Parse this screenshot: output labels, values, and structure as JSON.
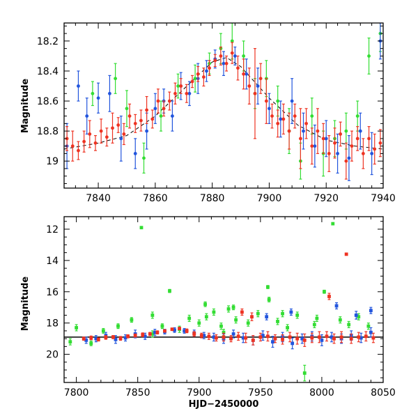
{
  "chart_data": [
    {
      "type": "scatter",
      "title": "",
      "xlabel": "",
      "ylabel": "Magnitude",
      "xlim": [
        7828,
        7940
      ],
      "ylim": [
        19.18,
        18.08
      ],
      "y_inverted": true,
      "grid": false,
      "xticks": [
        7840,
        7860,
        7880,
        7900,
        7920,
        7940
      ],
      "yticks": [
        18.2,
        18.4,
        18.6,
        18.8,
        19
      ],
      "ytick_labels": [
        "18.2",
        "18.4",
        "18.6",
        "18.8",
        "19"
      ],
      "error_bars": true,
      "model_curve": {
        "style": "dashed",
        "color": "#000000",
        "x": [
          7828,
          7840,
          7850,
          7860,
          7870,
          7880,
          7885,
          7890,
          7900,
          7910,
          7920,
          7930,
          7940
        ],
        "y": [
          18.92,
          18.88,
          18.83,
          18.7,
          18.52,
          18.34,
          18.31,
          18.37,
          18.58,
          18.76,
          18.86,
          18.9,
          18.92
        ]
      },
      "series": [
        {
          "color": "#ee3322",
          "note_points": "dense coverage, approximate sample",
          "x": [
            7829,
            7831,
            7833,
            7835,
            7837,
            7839,
            7841,
            7843,
            7845,
            7847,
            7849,
            7851,
            7853,
            7855,
            7857,
            7859,
            7861,
            7863,
            7865,
            7867,
            7869,
            7871,
            7873,
            7875,
            7877,
            7879,
            7881,
            7883,
            7885,
            7887,
            7889,
            7891,
            7893,
            7895,
            7897,
            7899,
            7901,
            7903,
            7905,
            7907,
            7909,
            7911,
            7913,
            7915,
            7917,
            7919,
            7921,
            7923,
            7925,
            7927,
            7929,
            7931,
            7933,
            7935,
            7937,
            7939
          ],
          "y": [
            18.85,
            18.9,
            18.93,
            18.87,
            18.82,
            18.88,
            18.8,
            18.84,
            18.78,
            18.76,
            18.82,
            18.7,
            18.75,
            18.73,
            18.66,
            18.72,
            18.6,
            18.65,
            18.6,
            18.55,
            18.5,
            18.55,
            18.47,
            18.42,
            18.44,
            18.38,
            18.33,
            18.3,
            18.35,
            18.28,
            18.38,
            18.42,
            18.5,
            18.55,
            18.45,
            18.6,
            18.7,
            18.75,
            18.72,
            18.8,
            18.7,
            18.85,
            18.75,
            18.9,
            18.8,
            18.85,
            18.95,
            18.88,
            18.82,
            19.0,
            18.9,
            18.85,
            18.95,
            18.85,
            18.92,
            18.88
          ],
          "err": [
            0.08,
            0.1,
            0.06,
            0.07,
            0.09,
            0.05,
            0.08,
            0.06,
            0.1,
            0.05,
            0.07,
            0.08,
            0.06,
            0.07,
            0.09,
            0.06,
            0.08,
            0.05,
            0.06,
            0.07,
            0.05,
            0.06,
            0.04,
            0.05,
            0.06,
            0.05,
            0.04,
            0.06,
            0.05,
            0.07,
            0.08,
            0.1,
            0.12,
            0.3,
            0.1,
            0.15,
            0.08,
            0.09,
            0.1,
            0.12,
            0.08,
            0.2,
            0.1,
            0.12,
            0.15,
            0.1,
            0.12,
            0.1,
            0.08,
            0.12,
            0.1,
            0.08,
            0.1,
            0.08,
            0.1,
            0.09
          ]
        },
        {
          "color": "#2255dd",
          "note_points": "approximate sample",
          "x": [
            7829,
            7833,
            7836,
            7840,
            7844,
            7848,
            7853,
            7857,
            7860,
            7863,
            7866,
            7869,
            7872,
            7875,
            7878,
            7881,
            7884,
            7888,
            7892,
            7896,
            7900,
            7904,
            7908,
            7912,
            7916,
            7920,
            7924,
            7928,
            7932,
            7936,
            7939
          ],
          "y": [
            18.9,
            18.5,
            18.7,
            18.58,
            18.55,
            18.85,
            18.95,
            18.8,
            18.65,
            18.6,
            18.7,
            18.5,
            18.55,
            18.45,
            18.4,
            18.32,
            18.35,
            18.3,
            18.42,
            18.5,
            18.65,
            18.72,
            18.6,
            18.8,
            18.9,
            18.85,
            18.95,
            18.98,
            18.8,
            18.95,
            18.2
          ],
          "err": [
            0.15,
            0.1,
            0.12,
            0.1,
            0.12,
            0.15,
            0.1,
            0.12,
            0.1,
            0.08,
            0.1,
            0.09,
            0.08,
            0.1,
            0.07,
            0.06,
            0.08,
            0.06,
            0.1,
            0.12,
            0.1,
            0.12,
            0.15,
            0.12,
            0.14,
            0.12,
            0.13,
            0.15,
            0.12,
            0.14,
            0.12
          ]
        },
        {
          "color": "#33dd33",
          "note_points": "approximate sample",
          "x": [
            7838,
            7846,
            7850,
            7856,
            7862,
            7868,
            7874,
            7879,
            7883,
            7887,
            7891,
            7895,
            7899,
            7903,
            7907,
            7911,
            7915,
            7919,
            7923,
            7927,
            7931,
            7935,
            7939
          ],
          "y": [
            18.55,
            18.45,
            18.65,
            18.98,
            18.7,
            18.5,
            18.45,
            18.35,
            18.25,
            18.2,
            18.3,
            18.55,
            18.45,
            18.6,
            18.8,
            19.0,
            18.7,
            18.95,
            18.85,
            18.8,
            18.7,
            18.3,
            18.15
          ],
          "err": [
            0.08,
            0.1,
            0.12,
            0.1,
            0.1,
            0.08,
            0.09,
            0.07,
            0.1,
            0.12,
            0.1,
            0.1,
            0.12,
            0.1,
            0.15,
            0.12,
            0.12,
            0.15,
            0.12,
            0.12,
            0.1,
            0.12,
            0.12
          ]
        }
      ]
    },
    {
      "type": "scatter",
      "title": "",
      "xlabel": "HJD−2450000",
      "ylabel": "Magnitude",
      "xlim": [
        7790,
        8050
      ],
      "ylim": [
        21.8,
        11.2
      ],
      "y_inverted": true,
      "grid": false,
      "xticks": [
        7800,
        7850,
        7900,
        7950,
        8000,
        8050
      ],
      "yticks": [
        12,
        14,
        16,
        18,
        20
      ],
      "ytick_labels": [
        "12",
        "14",
        "16",
        "18",
        "20"
      ],
      "error_bars": true,
      "reference_line": {
        "y": 18.9,
        "color": "#000000"
      },
      "series": [
        {
          "color": "#ee3322",
          "note_points": "approximate sample",
          "x": [
            7806,
            7812,
            7818,
            7824,
            7830,
            7836,
            7842,
            7848,
            7854,
            7860,
            7866,
            7872,
            7878,
            7884,
            7890,
            7896,
            7902,
            7908,
            7914,
            7920,
            7926,
            7932,
            7938,
            7944,
            7950,
            7956,
            7962,
            7968,
            7974,
            7980,
            7986,
            7992,
            7998,
            8004,
            8010,
            8016,
            8020,
            8024,
            8030,
            8036,
            8042,
            8006,
            7935,
            7943
          ],
          "y": [
            19.0,
            18.95,
            19.05,
            18.92,
            18.9,
            18.98,
            18.85,
            18.8,
            18.75,
            18.7,
            18.6,
            18.5,
            18.4,
            18.35,
            18.5,
            18.7,
            18.8,
            18.85,
            18.95,
            18.9,
            19.0,
            18.85,
            18.95,
            19.1,
            18.9,
            18.85,
            19.0,
            19.05,
            18.9,
            19.0,
            19.1,
            18.95,
            18.9,
            18.85,
            19.0,
            18.9,
            13.6,
            19.0,
            18.9,
            18.85,
            18.95,
            16.3,
            17.3,
            17.6
          ],
          "err": [
            0.1,
            0.12,
            0.1,
            0.12,
            0.1,
            0.12,
            0.1,
            0.1,
            0.12,
            0.1,
            0.1,
            0.08,
            0.08,
            0.08,
            0.12,
            0.15,
            0.15,
            0.2,
            0.2,
            0.25,
            0.2,
            0.25,
            0.3,
            0.3,
            0.25,
            0.3,
            0.25,
            0.3,
            0.3,
            0.35,
            0.4,
            0.3,
            0.35,
            0.3,
            0.3,
            0.35,
            0.05,
            0.3,
            0.3,
            0.3,
            0.3,
            0.2,
            0.2,
            0.25
          ]
        },
        {
          "color": "#2255dd",
          "note_points": "approximate sample",
          "x": [
            7808,
            7816,
            7824,
            7832,
            7840,
            7848,
            7856,
            7864,
            7872,
            7880,
            7888,
            7896,
            7904,
            7912,
            7920,
            7928,
            7936,
            7944,
            7952,
            7960,
            7968,
            7976,
            7984,
            7992,
            8000,
            8008,
            8016,
            8024,
            8032,
            8040,
            7955,
            7975,
            8012,
            8028,
            8040
          ],
          "y": [
            19.1,
            19.0,
            18.8,
            19.05,
            18.95,
            18.7,
            18.85,
            18.6,
            18.55,
            18.45,
            18.5,
            18.65,
            18.8,
            18.9,
            19.0,
            18.7,
            18.95,
            19.1,
            18.8,
            19.2,
            18.9,
            19.3,
            19.0,
            18.85,
            19.1,
            18.9,
            19.0,
            18.8,
            18.95,
            18.6,
            17.6,
            17.3,
            16.9,
            17.5,
            17.2
          ],
          "err": [
            0.2,
            0.2,
            0.2,
            0.25,
            0.2,
            0.25,
            0.2,
            0.2,
            0.15,
            0.15,
            0.15,
            0.2,
            0.2,
            0.25,
            0.3,
            0.25,
            0.3,
            0.3,
            0.3,
            0.35,
            0.3,
            0.35,
            0.3,
            0.3,
            0.35,
            0.3,
            0.3,
            0.3,
            0.3,
            0.3,
            0.2,
            0.2,
            0.2,
            0.25,
            0.2
          ]
        },
        {
          "color": "#33dd33",
          "note_points": "approximate sample",
          "x": [
            7795,
            7800,
            7812,
            7822,
            7834,
            7845,
            7853,
            7862,
            7870,
            7876,
            7884,
            7892,
            7900,
            7906,
            7912,
            7918,
            7924,
            7930,
            7940,
            7948,
            7956,
            7964,
            7972,
            7980,
            7986,
            7994,
            8002,
            8009,
            8015,
            8022,
            8030,
            8038,
            7862,
            7905,
            7928,
            7957,
            7968,
            7996,
            7920
          ],
          "y": [
            19.2,
            18.3,
            19.3,
            18.5,
            18.2,
            17.8,
            11.9,
            18.7,
            18.2,
            15.95,
            18.4,
            17.7,
            18.0,
            17.6,
            17.3,
            18.2,
            17.1,
            17.8,
            18.0,
            17.4,
            15.7,
            17.9,
            18.3,
            17.5,
            21.2,
            18.1,
            16.0,
            11.65,
            17.8,
            18.1,
            17.6,
            18.2,
            17.5,
            16.8,
            17.0,
            16.5,
            17.4,
            17.7,
            18.6
          ],
          "err": [
            0.2,
            0.2,
            0.15,
            0.15,
            0.15,
            0.15,
            0.05,
            0.2,
            0.15,
            0.1,
            0.2,
            0.2,
            0.2,
            0.2,
            0.2,
            0.2,
            0.2,
            0.2,
            0.2,
            0.2,
            0.1,
            0.2,
            0.2,
            0.2,
            0.5,
            0.2,
            0.1,
            0.05,
            0.2,
            0.2,
            0.2,
            0.2,
            0.2,
            0.15,
            0.15,
            0.15,
            0.2,
            0.2,
            0.2
          ]
        }
      ]
    }
  ]
}
